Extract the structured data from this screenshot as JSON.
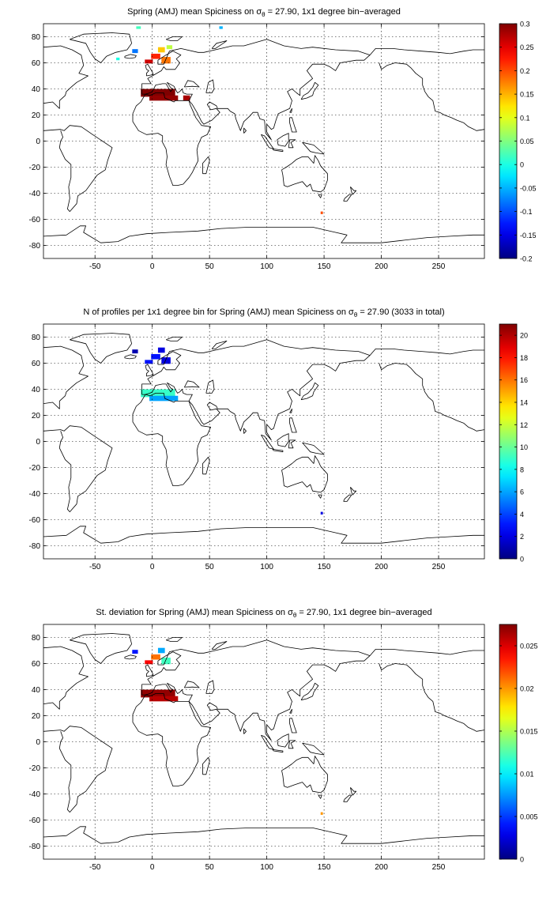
{
  "chart_data": [
    {
      "type": "heatmap",
      "title_parts": [
        "Spring (AMJ) mean Spiciness on ",
        "σ",
        "θ",
        " = 27.90, 1x1 degree bin−averaged"
      ],
      "xlim": [
        -95,
        290
      ],
      "ylim": [
        -90,
        90
      ],
      "x_ticks": [
        -50,
        0,
        50,
        100,
        150,
        200,
        250
      ],
      "y_ticks": [
        -80,
        -60,
        -40,
        -20,
        0,
        20,
        40,
        60,
        80
      ],
      "colorbar": {
        "min": -0.2,
        "max": 0.3,
        "ticks": [
          -0.2,
          -0.15,
          -0.1,
          -0.05,
          0,
          0.05,
          0.1,
          0.15,
          0.2,
          0.25,
          0.3
        ],
        "tick_labels": [
          "-0.2",
          "-0.15",
          "-0.1",
          "-0.05",
          "0",
          "0.05",
          "0.1",
          "0.15",
          "0.2",
          "0.25",
          "0.3"
        ],
        "colormap": "jet"
      },
      "grid": true,
      "cells": [
        {
          "lon": 5,
          "lat": 37,
          "lon_w": 30,
          "lat_h": 6,
          "v": 0.3
        },
        {
          "lon": 10,
          "lat": 33,
          "lon_w": 25,
          "lat_h": 4,
          "v": 0.29
        },
        {
          "lon": 30,
          "lat": 33,
          "lon_w": 6,
          "lat_h": 4,
          "v": 0.28
        },
        {
          "lon": 3,
          "lat": 65,
          "lon_w": 8,
          "lat_h": 4,
          "v": 0.22
        },
        {
          "lon": 12,
          "lat": 62,
          "lon_w": 8,
          "lat_h": 5,
          "v": 0.18
        },
        {
          "lon": -3,
          "lat": 61,
          "lon_w": 7,
          "lat_h": 3,
          "v": 0.26
        },
        {
          "lon": 8,
          "lat": 70,
          "lon_w": 6,
          "lat_h": 4,
          "v": 0.14
        },
        {
          "lon": 15,
          "lat": 72,
          "lon_w": 5,
          "lat_h": 3,
          "v": 0.08
        },
        {
          "lon": -15,
          "lat": 69,
          "lon_w": 5,
          "lat_h": 3,
          "v": -0.08
        },
        {
          "lon": -30,
          "lat": 63,
          "lon_w": 3,
          "lat_h": 2,
          "v": 0.0
        },
        {
          "lon": -12,
          "lat": 87,
          "lon_w": 4,
          "lat_h": 2,
          "v": 0.02
        },
        {
          "lon": 60,
          "lat": 87,
          "lon_w": 3,
          "lat_h": 2,
          "v": -0.05
        },
        {
          "lon": 148,
          "lat": -55,
          "lon_w": 2,
          "lat_h": 2,
          "v": 0.2
        }
      ]
    },
    {
      "type": "heatmap",
      "title_parts": [
        "N of profiles per 1x1 degree bin for Spring (AMJ) mean Spiciness on ",
        "σ",
        "θ",
        " = 27.90 (3033 in total)"
      ],
      "xlim": [
        -95,
        290
      ],
      "ylim": [
        -90,
        90
      ],
      "x_ticks": [
        -50,
        0,
        50,
        100,
        150,
        200,
        250
      ],
      "y_ticks": [
        -80,
        -60,
        -40,
        -20,
        0,
        20,
        40,
        60,
        80
      ],
      "colorbar": {
        "min": 0,
        "max": 21,
        "ticks": [
          0,
          2,
          4,
          6,
          8,
          10,
          12,
          14,
          16,
          18,
          20
        ],
        "tick_labels": [
          "0",
          "2",
          "4",
          "6",
          "8",
          "10",
          "12",
          "14",
          "16",
          "18",
          "20"
        ],
        "colormap": "jet"
      },
      "grid": true,
      "cells": [
        {
          "lon": 5,
          "lat": 37,
          "lon_w": 30,
          "lat_h": 6,
          "v": 9
        },
        {
          "lon": 10,
          "lat": 33,
          "lon_w": 25,
          "lat_h": 4,
          "v": 6
        },
        {
          "lon": 3,
          "lat": 65,
          "lon_w": 8,
          "lat_h": 4,
          "v": 3
        },
        {
          "lon": 12,
          "lat": 62,
          "lon_w": 8,
          "lat_h": 5,
          "v": 2
        },
        {
          "lon": -3,
          "lat": 61,
          "lon_w": 7,
          "lat_h": 3,
          "v": 3
        },
        {
          "lon": 8,
          "lat": 70,
          "lon_w": 6,
          "lat_h": 4,
          "v": 2
        },
        {
          "lon": -15,
          "lat": 69,
          "lon_w": 5,
          "lat_h": 3,
          "v": 1
        },
        {
          "lon": 148,
          "lat": -55,
          "lon_w": 2,
          "lat_h": 2,
          "v": 2
        }
      ]
    },
    {
      "type": "heatmap",
      "title_parts": [
        "St. deviation for Spring (AMJ) mean Spiciness on ",
        "σ",
        "θ",
        " = 27.90, 1x1 degree bin−averaged"
      ],
      "xlim": [
        -95,
        290
      ],
      "ylim": [
        -90,
        90
      ],
      "x_ticks": [
        -50,
        0,
        50,
        100,
        150,
        200,
        250
      ],
      "y_ticks": [
        -80,
        -60,
        -40,
        -20,
        0,
        20,
        40,
        60,
        80
      ],
      "colorbar": {
        "min": 0,
        "max": 0.0275,
        "ticks": [
          0,
          0.005,
          0.01,
          0.015,
          0.02,
          0.025
        ],
        "tick_labels": [
          "0",
          "0.005",
          "0.01",
          "0.015",
          "0.02",
          "0.025"
        ],
        "colormap": "jet"
      },
      "grid": true,
      "cells": [
        {
          "lon": 5,
          "lat": 37,
          "lon_w": 30,
          "lat_h": 6,
          "v": 0.027
        },
        {
          "lon": 10,
          "lat": 33,
          "lon_w": 25,
          "lat_h": 4,
          "v": 0.026
        },
        {
          "lon": 3,
          "lat": 65,
          "lon_w": 8,
          "lat_h": 4,
          "v": 0.021
        },
        {
          "lon": 12,
          "lat": 62,
          "lon_w": 8,
          "lat_h": 5,
          "v": 0.012
        },
        {
          "lon": -3,
          "lat": 61,
          "lon_w": 7,
          "lat_h": 3,
          "v": 0.024
        },
        {
          "lon": 8,
          "lat": 70,
          "lon_w": 6,
          "lat_h": 4,
          "v": 0.008
        },
        {
          "lon": -15,
          "lat": 69,
          "lon_w": 5,
          "lat_h": 3,
          "v": 0.004
        },
        {
          "lon": 148,
          "lat": -55,
          "lon_w": 2,
          "lat_h": 2,
          "v": 0.02
        }
      ]
    }
  ]
}
